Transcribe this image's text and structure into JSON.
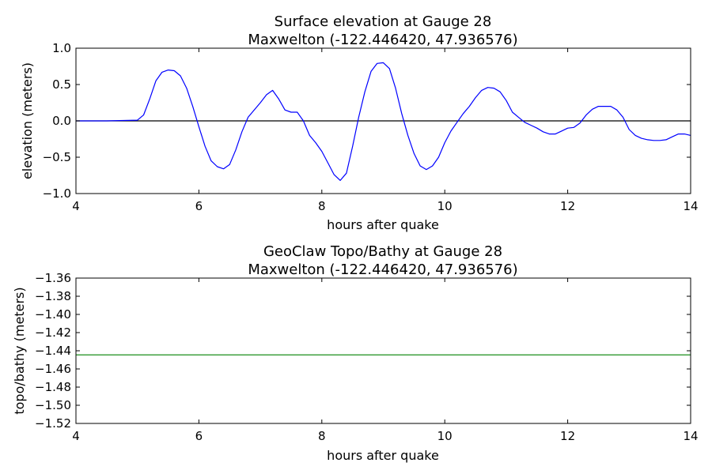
{
  "chart_data": [
    {
      "type": "line",
      "title": "Surface elevation at Gauge 28",
      "subtitle": "Maxwelton  (-122.446420, 47.936576)",
      "xlabel": "hours after quake",
      "ylabel": "elevation (meters)",
      "xlim": [
        4,
        14
      ],
      "ylim": [
        -1.0,
        1.0
      ],
      "xticks": [
        4,
        6,
        8,
        10,
        12,
        14
      ],
      "yticks": [
        -1.0,
        -0.5,
        0.0,
        0.5,
        1.0
      ],
      "ytick_labels": [
        "−1.0",
        "−0.5",
        "0.0",
        "0.5",
        "1.0"
      ],
      "grid": false,
      "colors": {
        "series": "#0000ff",
        "zero_line": "#000000"
      },
      "reference_line": {
        "y": 0.0
      },
      "series": [
        {
          "x": [
            4.0,
            4.5,
            5.0,
            5.1,
            5.2,
            5.3,
            5.4,
            5.5,
            5.6,
            5.7,
            5.8,
            5.9,
            6.0,
            6.1,
            6.2,
            6.3,
            6.4,
            6.5,
            6.6,
            6.7,
            6.8,
            6.9,
            7.0,
            7.1,
            7.2,
            7.3,
            7.4,
            7.5,
            7.6,
            7.7,
            7.8,
            7.9,
            8.0,
            8.1,
            8.2,
            8.3,
            8.4,
            8.5,
            8.6,
            8.7,
            8.8,
            8.9,
            9.0,
            9.1,
            9.2,
            9.3,
            9.4,
            9.5,
            9.6,
            9.7,
            9.8,
            9.9,
            10.0,
            10.1,
            10.2,
            10.3,
            10.4,
            10.5,
            10.6,
            10.7,
            10.8,
            10.9,
            11.0,
            11.1,
            11.2,
            11.3,
            11.4,
            11.5,
            11.6,
            11.7,
            11.8,
            11.9,
            12.0,
            12.1,
            12.2,
            12.3,
            12.4,
            12.5,
            12.6,
            12.7,
            12.8,
            12.9,
            13.0,
            13.1,
            13.2,
            13.3,
            13.4,
            13.5,
            13.6,
            13.7,
            13.8,
            13.9,
            14.0
          ],
          "values": [
            0.0,
            0.0,
            0.01,
            0.08,
            0.3,
            0.55,
            0.67,
            0.7,
            0.69,
            0.62,
            0.45,
            0.2,
            -0.08,
            -0.35,
            -0.55,
            -0.63,
            -0.66,
            -0.6,
            -0.4,
            -0.15,
            0.05,
            0.15,
            0.25,
            0.36,
            0.42,
            0.3,
            0.15,
            0.12,
            0.12,
            0.0,
            -0.2,
            -0.3,
            -0.42,
            -0.58,
            -0.74,
            -0.82,
            -0.72,
            -0.35,
            0.05,
            0.4,
            0.68,
            0.79,
            0.8,
            0.72,
            0.45,
            0.1,
            -0.2,
            -0.45,
            -0.62,
            -0.67,
            -0.62,
            -0.5,
            -0.3,
            -0.14,
            -0.02,
            0.1,
            0.2,
            0.32,
            0.42,
            0.46,
            0.45,
            0.4,
            0.28,
            0.12,
            0.05,
            -0.02,
            -0.06,
            -0.1,
            -0.15,
            -0.18,
            -0.18,
            -0.14,
            -0.1,
            -0.09,
            -0.03,
            0.08,
            0.16,
            0.2,
            0.2,
            0.2,
            0.15,
            0.05,
            -0.12,
            -0.2,
            -0.24,
            -0.26,
            -0.27,
            -0.27,
            -0.26,
            -0.22,
            -0.18,
            -0.18,
            -0.2
          ]
        }
      ]
    },
    {
      "type": "line",
      "title": "GeoClaw Topo/Bathy at Gauge 28",
      "subtitle": "Maxwelton  (-122.446420, 47.936576)",
      "xlabel": "hours after quake",
      "ylabel": "topo/bathy (meters)",
      "xlim": [
        4,
        14
      ],
      "ylim": [
        -1.52,
        -1.36
      ],
      "xticks": [
        4,
        6,
        8,
        10,
        12,
        14
      ],
      "yticks": [
        -1.52,
        -1.5,
        -1.48,
        -1.46,
        -1.44,
        -1.42,
        -1.4,
        -1.38,
        -1.36
      ],
      "ytick_labels": [
        "−1.52",
        "−1.50",
        "−1.48",
        "−1.46",
        "−1.44",
        "−1.42",
        "−1.40",
        "−1.38",
        "−1.36"
      ],
      "grid": false,
      "colors": {
        "series": "#008000"
      },
      "series": [
        {
          "x": [
            4,
            14
          ],
          "values": [
            -1.4445,
            -1.4445
          ]
        }
      ]
    }
  ]
}
